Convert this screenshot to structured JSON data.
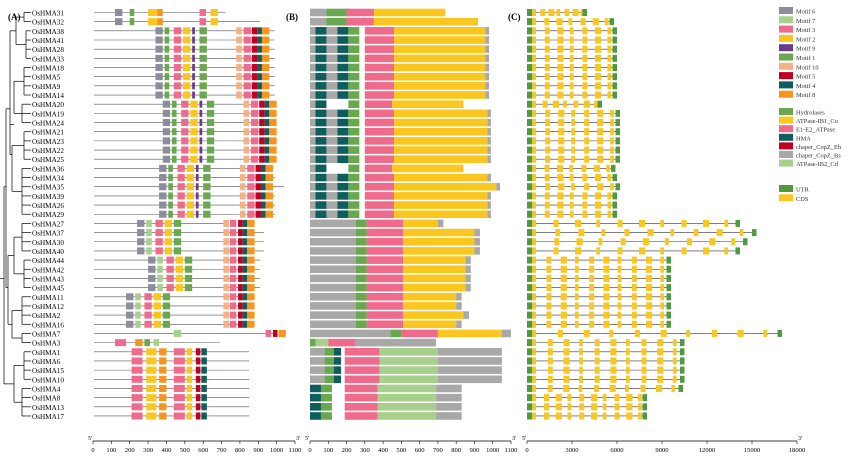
{
  "panels": {
    "A": "(A)",
    "B": "(B)",
    "C": "(C)"
  },
  "genes": [
    "OsHMA31",
    "OsHMA32",
    "OsHMA38",
    "OsHMA41",
    "OsHMA28",
    "OsHMA33",
    "OsHMA18",
    "OsHMA5",
    "OsHMA9",
    "OsHMA14",
    "OsHMA20",
    "OsHMA19",
    "OsHMA24",
    "OsHMA21",
    "OsHMA23",
    "OsHMA22",
    "OsHMA25",
    "OsHMA36",
    "OsHMA34",
    "OsHMA35",
    "OsHMA39",
    "OsHMA26",
    "OsHMA29",
    "OsHMA27",
    "OsHMA37",
    "OsHMA30",
    "OsHMA40",
    "OsHMA44",
    "OsHMA42",
    "OsHMA43",
    "OsHMA45",
    "OsHMA11",
    "OsHMA12",
    "OsHMA2",
    "OsHMA16",
    "OsHMA7",
    "OsHMA3",
    "OsHMA1",
    "OsHMA6",
    "OsHMA15",
    "OsHMA10",
    "OsHMA4",
    "OsHMA8",
    "OsHMA13",
    "OsHMA17"
  ],
  "axes": {
    "a": {
      "min": 0,
      "max": 1100,
      "ticks": [
        0,
        100,
        200,
        300,
        400,
        500,
        600,
        700,
        800,
        900,
        1000,
        1100
      ]
    },
    "b": {
      "min": 0,
      "max": 1100,
      "ticks": [
        0,
        100,
        200,
        300,
        400,
        500,
        600,
        700,
        800,
        900,
        1000,
        1100
      ]
    },
    "c": {
      "min": 0,
      "max": 18000,
      "ticks": [
        0,
        3000,
        6000,
        9000,
        12000,
        15000,
        18000
      ]
    }
  },
  "axis_end": "3'",
  "axis_start": "5'",
  "colors": {
    "Motif 6": "#8c8c9c",
    "Motif 7": "#a8d08d",
    "Motif 3": "#f06a8c",
    "Motif 2": "#f9c71f",
    "Motif 9": "#6a3d8c",
    "Motif 1": "#6aa84f",
    "Motif 10": "#f4b183",
    "Motif 5": "#c00020",
    "Motif 4": "#0f5e5e",
    "Motif 8": "#f7941d",
    "Hydrolases": "#6aa84f",
    "ATPase-IB1_Cu": "#f9c71f",
    "E1-E2_ATPase": "#f06a8c",
    "HMA": "#0f5e5e",
    "chaper_CopZ_Eh": "#c00020",
    "chaper_CopZ_Bs": "#a8a8a8",
    "ATPase-IB2_Cd": "#a8d08d",
    "UTR": "#4f9a3f",
    "CDS": "#f9c71f"
  },
  "legends": {
    "motifs": [
      "Motif 6",
      "Motif 7",
      "Motif 3",
      "Motif 2",
      "Motif 9",
      "Motif 1",
      "Motif 10",
      "Motif 5",
      "Motif 4",
      "Motif 8"
    ],
    "domains": [
      "Hydrolases",
      "ATPase-IB1_Cu",
      "E1-E2_ATPase",
      "HMA",
      "chaper_CopZ_Eh",
      "chaper_CopZ_Bs",
      "ATPase-IB2_Cd"
    ],
    "structure": [
      "UTR",
      "CDS"
    ]
  }
}
